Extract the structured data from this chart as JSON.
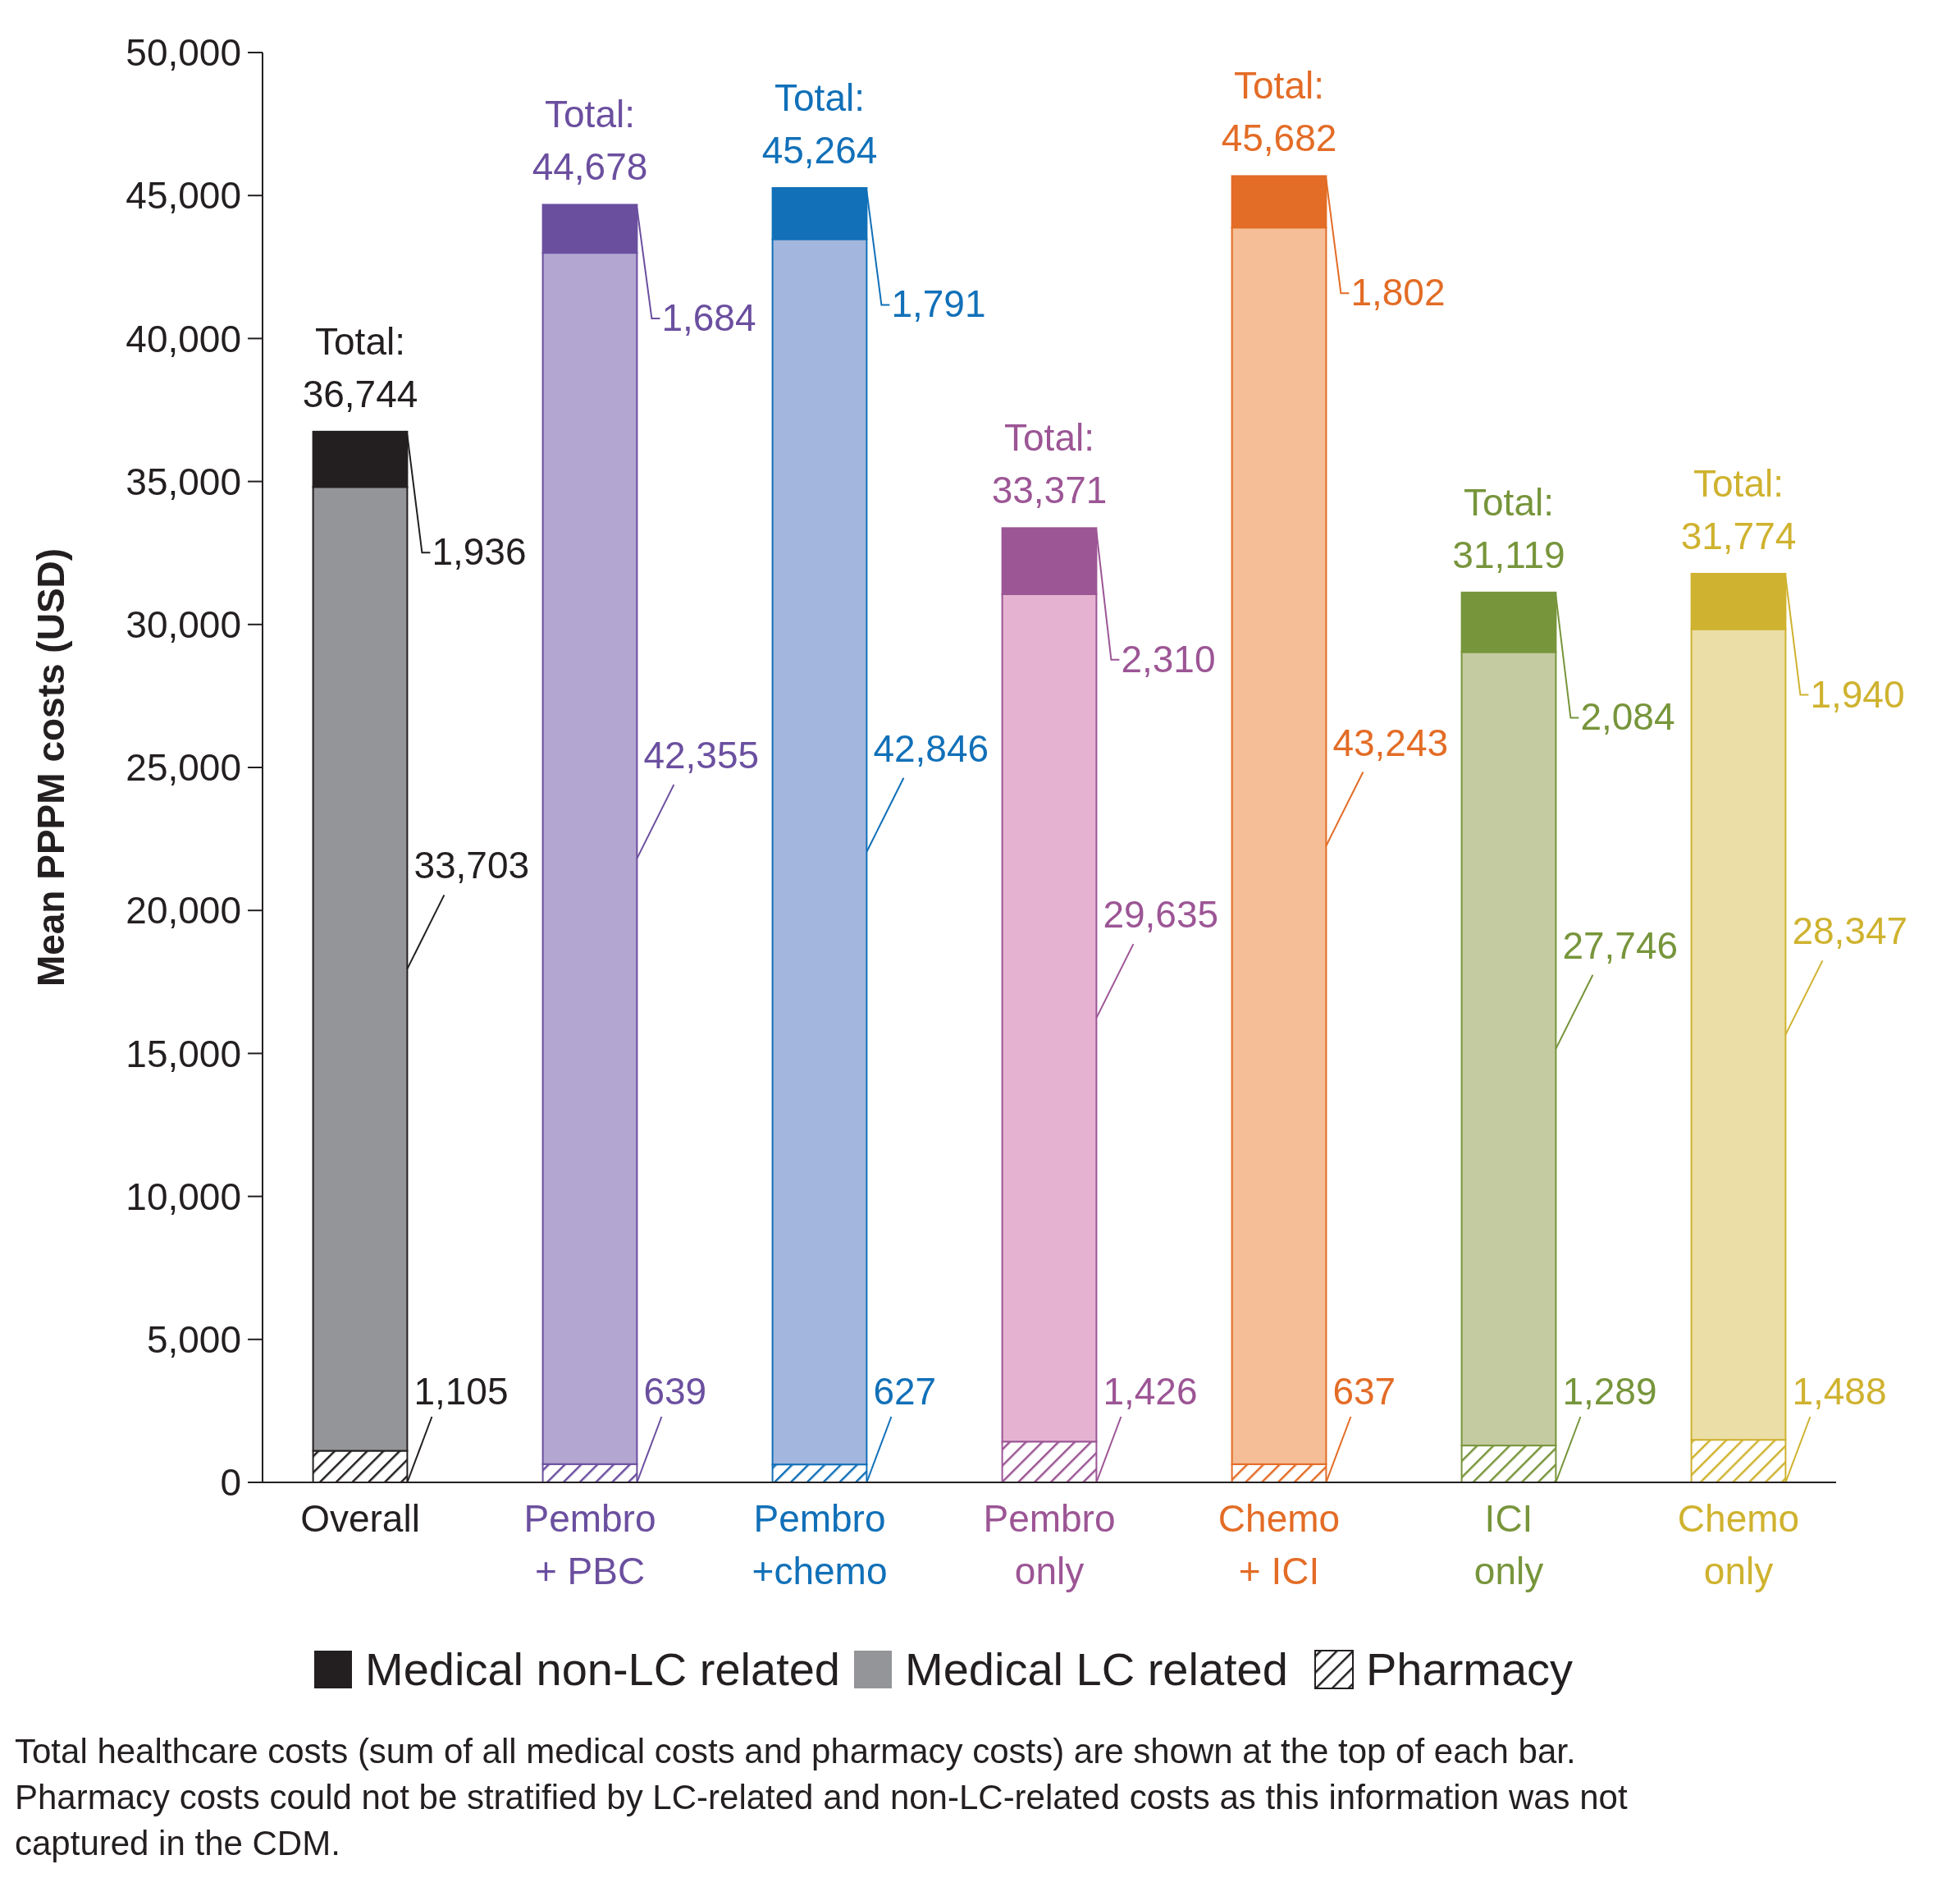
{
  "chart_data": {
    "type": "bar",
    "stacked": true,
    "ylabel": "Mean PPPM costs (USD)",
    "categories": [
      "Overall",
      "Pembro + PBC",
      "Pembro +chemo",
      "Pembro only",
      "Chemo + ICI",
      "ICI only",
      "Chemo only"
    ],
    "series": [
      {
        "name": "Pharmacy",
        "color": "#231f20",
        "colors": [
          "#231f20",
          "#6b4f9f",
          "#1170b8",
          "#9c5595",
          "#e36c26",
          "#77953b",
          "#cfb22f"
        ],
        "values": [
          1105,
          639,
          627,
          1426,
          637,
          1289,
          1488
        ],
        "value_labels": [
          "1,105",
          "639",
          "627",
          "1,426",
          "637",
          "1,289",
          "1,488"
        ]
      },
      {
        "name": "Medical LC related",
        "color": "#939598",
        "colors": [
          "#939598",
          "#b3a6d0",
          "#a3b6dd",
          "#e5b3d1",
          "#f5be96",
          "#c5cba1",
          "#ebdea6"
        ],
        "values": [
          33703,
          42355,
          42846,
          29635,
          43243,
          27746,
          28347
        ],
        "value_labels": [
          "33,703",
          "42,355",
          "42,846",
          "29,635",
          "43,243",
          "27,746",
          "28,347"
        ]
      },
      {
        "name": "Medical non-LC related",
        "color": "#231f20",
        "colors": [
          "#231f20",
          "#6b4f9f",
          "#1170b8",
          "#9c5595",
          "#e36c26",
          "#77953b",
          "#cfb22f"
        ],
        "values": [
          1936,
          1684,
          1791,
          2310,
          1802,
          2084,
          1940
        ],
        "value_labels": [
          "1,936",
          "1,684",
          "1,791",
          "2,310",
          "1,802",
          "2,084",
          "1,940"
        ]
      }
    ],
    "totals": [
      "Total: 36,744",
      "Total: 44,678",
      "Total: 45,264",
      "Total: 33,371",
      "Total: 45,682",
      "Total: 31,119",
      "Total: 31,774"
    ],
    "ylim": [
      0,
      50000
    ],
    "yticks": [
      0,
      {
        "value": 5000,
        "label": "5,000"
      },
      {
        "value": 10000,
        "label": "10,000"
      },
      {
        "value": 15000,
        "label": "15,000"
      },
      {
        "value": 20000,
        "label": "20,000"
      },
      {
        "value": 25000,
        "label": "25,000"
      },
      {
        "value": 30000,
        "label": "30,000"
      },
      {
        "value": 35000,
        "label": "35,000"
      },
      {
        "value": 40000,
        "label": "40,000"
      },
      {
        "value": 45000,
        "label": "45,000"
      },
      {
        "value": 50000,
        "label": "50,000"
      }
    ],
    "grid": false,
    "legend": "bottom",
    "annotations": [
      "Total healthcare costs (sum of all medical costs and pharmacy costs) are shown at the top of each bar. Pharmacy costs could not be stratified by LC-related and non-LC-related costs as this information was not captured in the CDM."
    ]
  }
}
